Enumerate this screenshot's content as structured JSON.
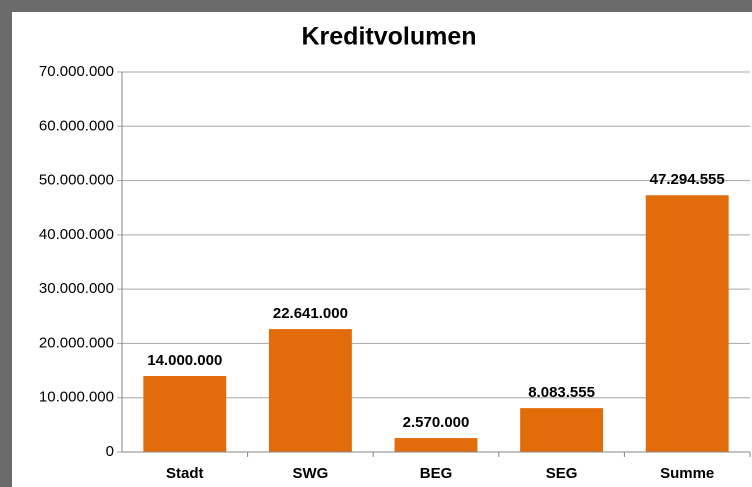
{
  "chart_data": {
    "type": "bar",
    "title": "Kreditvolumen",
    "categories": [
      "Stadt",
      "SWG",
      "BEG",
      "SEG",
      "Summe"
    ],
    "values": [
      14000000,
      22641000,
      2570000,
      8083555,
      47294555
    ],
    "value_labels": [
      "14.000.000",
      "22.641.000",
      "2.570.000",
      "8.083.555",
      "47.294.555"
    ],
    "color": "#e36c0a",
    "ylim": [
      0,
      70000000
    ],
    "yticks": [
      0,
      {
        "value": 10000000,
        "label": "10.000.000"
      },
      {
        "value": 20000000,
        "label": "20.000.000"
      },
      {
        "value": 30000000,
        "label": "30.000.000"
      },
      {
        "value": 40000000,
        "label": "40.000.000"
      },
      {
        "value": 50000000,
        "label": "50.000.000"
      },
      {
        "value": 60000000,
        "label": "60.000.000"
      },
      {
        "value": 70000000,
        "label": "70.000.000"
      }
    ],
    "grid": true
  }
}
